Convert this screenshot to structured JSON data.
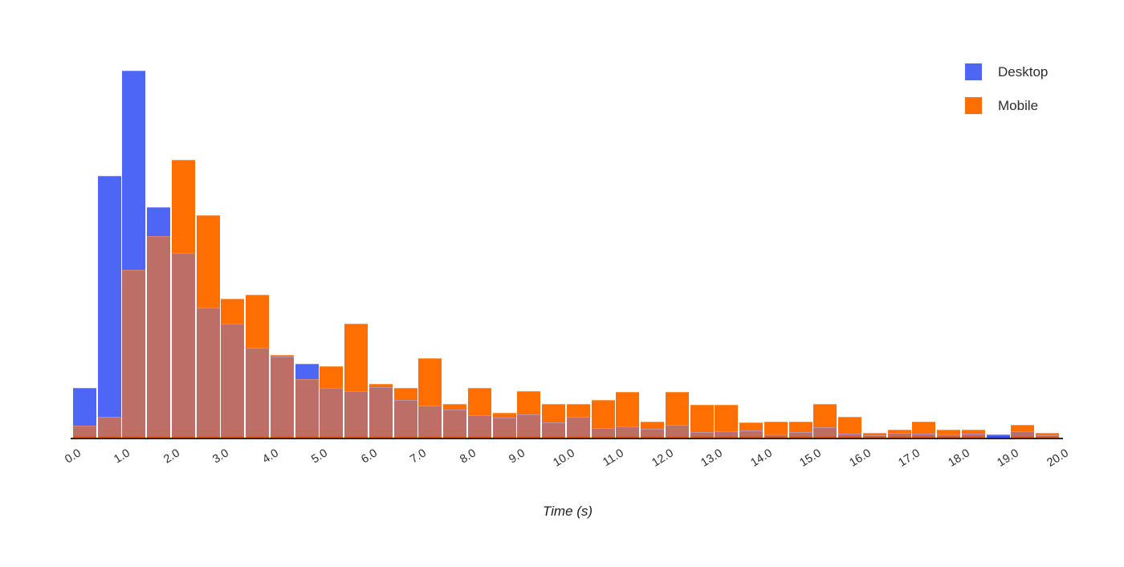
{
  "chart": {
    "x_axis": {
      "title": "Time (s)",
      "ticks": [
        "0.0",
        "1.0",
        "2.0",
        "3.0",
        "4.0",
        "5.0",
        "6.0",
        "7.0",
        "8.0",
        "9.0",
        "10.0",
        "11.0",
        "12.0",
        "13.0",
        "14.0",
        "15.0",
        "16.0",
        "17.0",
        "18.0",
        "19.0",
        "20.0"
      ]
    },
    "legend": {
      "position": "top-right",
      "items": [
        {
          "label": "Desktop",
          "color": "#4D66F5"
        },
        {
          "label": "Mobile",
          "color": "#FF6E00"
        }
      ]
    }
  },
  "colors": {
    "desktop": "#4D66F5",
    "mobile": "#FF6E00",
    "overlap": "#BC6E67",
    "desktop_edge": "#7D8CF8",
    "mobile_edge": "#FF9A4B",
    "overlap_edge_blue_under": "#C18FB0",
    "overlap_edge_orange_over": "#D4876C",
    "accent_bottom_mobile": "#E06000",
    "accent_bottom_desktop": "#3C50DC",
    "axis_line": "#24282d",
    "text": "#2d2d2d",
    "background": "#ffffff"
  },
  "chart_data": {
    "type": "bar",
    "subtype": "overlaid-histogram",
    "title": "",
    "xlabel": "Time (s)",
    "ylabel": "",
    "bin_start": 0.0,
    "bin_width_s": 0.5,
    "bin_count": 40,
    "xlim": [
      0,
      20
    ],
    "ylim": [
      0,
      470
    ],
    "grid": false,
    "y_axis_shown": false,
    "units_note": "No y-axis shown in source; values are relative frequencies measured in pixel heights (baseline 545px, 1px per unit).",
    "legend_position": "top-right",
    "overlap_color": "#BC6E67",
    "series": [
      {
        "name": "Desktop",
        "color": "#4D66F5",
        "values": [
          62,
          326,
          457,
          287,
          230,
          162,
          142,
          112,
          101,
          92,
          62,
          58,
          63,
          47,
          40,
          35,
          28,
          25,
          29,
          19,
          26,
          12,
          14,
          11,
          16,
          7,
          8,
          9,
          4,
          7,
          13,
          5,
          3,
          6,
          5,
          4,
          5,
          4,
          8,
          3
        ]
      },
      {
        "name": "Mobile",
        "color": "#FF6E00",
        "values": [
          15,
          26,
          209,
          251,
          346,
          277,
          173,
          178,
          103,
          73,
          89,
          142,
          67,
          62,
          99,
          42,
          62,
          31,
          58,
          42,
          42,
          47,
          57,
          20,
          57,
          41,
          41,
          19,
          20,
          20,
          42,
          26,
          6,
          10,
          20,
          10,
          10,
          0,
          16,
          6
        ]
      }
    ]
  }
}
